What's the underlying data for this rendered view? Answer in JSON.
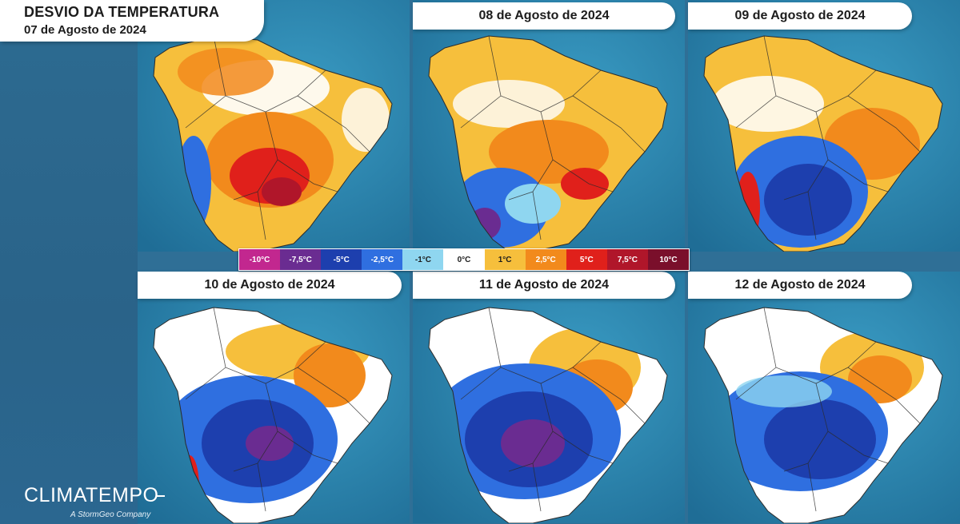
{
  "header": {
    "title": "DESVIO DA TEMPERATURA",
    "first_date": "07 de Agosto de 2024"
  },
  "panels": [
    {
      "date": "07 de Agosto de 2024",
      "pattern": "warm-center-hot"
    },
    {
      "date": "08 de Agosto de 2024",
      "pattern": "warm-north-cool-south"
    },
    {
      "date": "09 de Agosto de 2024",
      "pattern": "cold-south"
    },
    {
      "date": "10 de Agosto de 2024",
      "pattern": "cold-center-purple"
    },
    {
      "date": "11 de Agosto de 2024",
      "pattern": "cold-center-purple-large"
    },
    {
      "date": "12 de Agosto de 2024",
      "pattern": "cold-south-east"
    }
  ],
  "legend": [
    {
      "label": "-10°C",
      "color": "#c2278f",
      "text": "#ffffff"
    },
    {
      "label": "-7,5°C",
      "color": "#6a2c91",
      "text": "#ffffff"
    },
    {
      "label": "-5°C",
      "color": "#1d3fae",
      "text": "#ffffff"
    },
    {
      "label": "-2,5°C",
      "color": "#2f6fe0",
      "text": "#ffffff"
    },
    {
      "label": "-1°C",
      "color": "#8fd6f0",
      "text": "#1c1c1c"
    },
    {
      "label": "0°C",
      "color": "#ffffff",
      "text": "#1c1c1c"
    },
    {
      "label": "1°C",
      "color": "#f6bf3c",
      "text": "#1c1c1c"
    },
    {
      "label": "2,5°C",
      "color": "#f28a1c",
      "text": "#ffffff"
    },
    {
      "label": "5°C",
      "color": "#e0201b",
      "text": "#ffffff"
    },
    {
      "label": "7,5°C",
      "color": "#b0162a",
      "text": "#ffffff"
    },
    {
      "label": "10°C",
      "color": "#7a0f2b",
      "text": "#ffffff"
    }
  ],
  "branding": {
    "name": "CLIMATEMPO",
    "tagline": "A StormGeo Company"
  },
  "colors": {
    "ocean": "#2a7fa8",
    "land_outline": "#2b2b2b"
  }
}
